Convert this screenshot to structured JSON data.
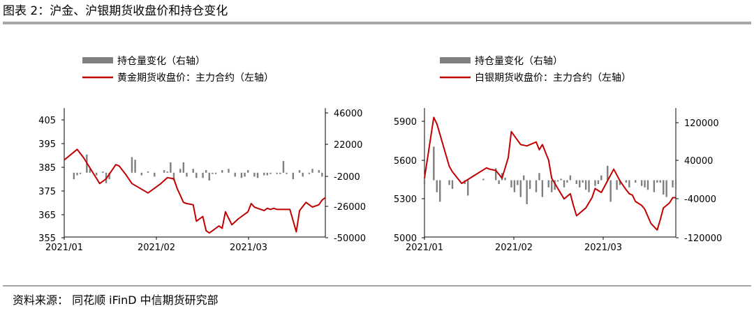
{
  "page": {
    "title": "图表 2：沪金、沪银期货收盘价和持仓变化",
    "source": "资料来源：  同花顺 iFinD 中信期货研究部"
  },
  "colors": {
    "line": "#c00000",
    "bar": "#7f7f7f",
    "rule": "#a6a6a6"
  },
  "chart_data": [
    {
      "type": "line",
      "legend": [
        "持仓量变化（右轴）",
        "黄金期货收盘价：主力合约（左轴）"
      ],
      "x_ticks": [
        "2021/01",
        "2021/02",
        "2021/03"
      ],
      "y_left_ticks": [
        "405",
        "395",
        "385",
        "375",
        "365",
        "355"
      ],
      "y_left_range": [
        355,
        408
      ],
      "y_right_ticks": [
        "46000",
        "22000",
        "-2000",
        "-26000",
        "-50000"
      ],
      "y_right_range": [
        -50000,
        46000
      ],
      "series": [
        {
          "name": "黄金期货收盘价：主力合约（左轴）",
          "axis": "left",
          "x": [
            0,
            4,
            6,
            11,
            13,
            16,
            17,
            19,
            21,
            26,
            30,
            32,
            34,
            35,
            37,
            38,
            40,
            41,
            43,
            44,
            45,
            46,
            47,
            48,
            49,
            50,
            52,
            54,
            56,
            57,
            58,
            59,
            60,
            61,
            62,
            63,
            64,
            65,
            66,
            67,
            68,
            70,
            72,
            73,
            75,
            77,
            79,
            80,
            81
          ],
          "values": [
            388,
            392.5,
            389,
            378,
            380,
            386,
            385.5,
            382,
            378,
            374,
            378,
            380.5,
            380,
            376,
            370,
            369.5,
            369,
            362,
            364,
            358,
            357,
            358,
            359,
            360,
            359,
            366,
            360.5,
            363,
            365,
            366,
            369.5,
            368,
            367.5,
            367,
            366.5,
            367.5,
            367,
            367.5,
            367,
            367,
            367,
            367,
            357.5,
            366.5,
            370,
            368,
            369,
            371,
            372
          ]
        },
        {
          "name": "持仓量变化（右轴）",
          "axis": "right",
          "x": [
            3,
            4,
            5,
            7,
            8,
            10,
            12,
            13,
            14,
            21,
            22,
            24,
            26,
            28,
            31,
            32,
            33,
            34,
            36,
            37,
            38,
            40,
            41,
            43,
            44,
            45,
            46,
            47,
            49,
            51,
            53,
            55,
            56,
            57,
            59,
            60,
            62,
            63,
            64,
            66,
            67,
            68,
            69,
            71,
            73,
            74,
            76,
            77,
            79,
            80
          ],
          "values": [
            -5000,
            -2000,
            -1000,
            14000,
            3000,
            -2000,
            1000,
            -8000,
            -5000,
            12000,
            10000,
            -2000,
            1000,
            -3000,
            2000,
            1000,
            8000,
            -6000,
            3000,
            8000,
            -3000,
            3000,
            -4000,
            -4000,
            2000,
            -6000,
            -1000,
            -1000,
            2000,
            3000,
            -3000,
            -4000,
            -3000,
            2000,
            -3000,
            -4000,
            -2000,
            -2000,
            -1000,
            -1000,
            -1000,
            9000,
            -1000,
            -5000,
            2000,
            -3000,
            -1000,
            3000,
            2000,
            -3000
          ]
        }
      ]
    },
    {
      "type": "line",
      "legend": [
        "持仓量变化（右轴）",
        "白银期货收盘价：主力合约（左轴）"
      ],
      "x_ticks": [
        "2021/01",
        "2021/02",
        "2021/03"
      ],
      "y_left_ticks": [
        "5900",
        "5600",
        "5300",
        "5000"
      ],
      "y_left_range": [
        5000,
        5970
      ],
      "y_right_ticks": [
        "120000",
        "40000",
        "-40000",
        "-120000"
      ],
      "y_right_range": [
        -120000,
        140000
      ],
      "series": [
        {
          "name": "白银期货收盘价：主力合约（左轴）",
          "axis": "left",
          "x": [
            0,
            3,
            4,
            8,
            9,
            12,
            16,
            20,
            21,
            23,
            25,
            27,
            28,
            31,
            33,
            36,
            37,
            38,
            40,
            41,
            43,
            45,
            47,
            48,
            49,
            52,
            54,
            55,
            57,
            59,
            61,
            63,
            65,
            66,
            67,
            68,
            70,
            71,
            73,
            75,
            76,
            77,
            78,
            79,
            80,
            81
          ],
          "values": [
            5460,
            5930,
            5880,
            5550,
            5510,
            5420,
            5480,
            5540,
            5530,
            5520,
            5460,
            5620,
            5820,
            5720,
            5710,
            5740,
            5680,
            5720,
            5600,
            5460,
            5380,
            5300,
            5340,
            5250,
            5170,
            5230,
            5310,
            5380,
            5350,
            5440,
            5530,
            5440,
            5370,
            5340,
            5330,
            5280,
            5250,
            5220,
            5110,
            5060,
            5140,
            5230,
            5250,
            5270,
            5310,
            5310
          ]
        },
        {
          "name": "持仓量变化（右轴）",
          "axis": "right",
          "x": [
            0,
            3,
            4,
            5,
            8,
            9,
            13,
            14,
            19,
            23,
            24,
            25,
            26,
            28,
            29,
            30,
            31,
            32,
            33,
            34,
            36,
            37,
            38,
            40,
            41,
            42,
            43,
            44,
            45,
            46,
            47,
            49,
            50,
            51,
            52,
            53,
            55,
            56,
            57,
            59,
            60,
            62,
            63,
            65,
            66,
            68,
            70,
            71,
            72,
            74,
            75,
            76,
            77,
            78,
            80,
            81
          ],
          "values": [
            -8000,
            70000,
            -25000,
            -45000,
            -10000,
            -18000,
            -8000,
            -32000,
            3000,
            25000,
            -8000,
            15000,
            5000,
            -15000,
            -25000,
            -10000,
            -35000,
            10000,
            -50000,
            -18000,
            -25000,
            15000,
            -35000,
            -15000,
            -25000,
            -20000,
            -3000,
            3000,
            -15000,
            -5000,
            10000,
            -8000,
            -15000,
            -5000,
            -20000,
            -25000,
            -12000,
            -8000,
            10000,
            30000,
            -45000,
            -20000,
            -10000,
            -5000,
            -15000,
            -5000,
            -12000,
            -15000,
            -20000,
            -25000,
            -5000,
            -5000,
            -30000,
            -35000,
            -15000,
            -18000
          ]
        }
      ]
    }
  ]
}
